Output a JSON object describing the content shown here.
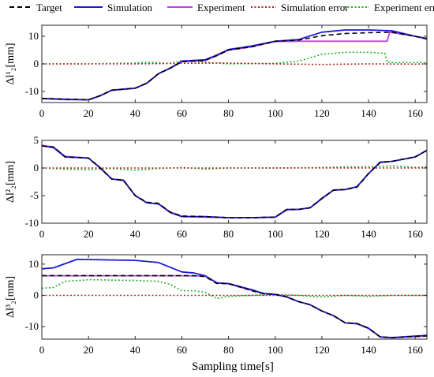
{
  "legend": [
    {
      "label": "Target",
      "color": "#000000",
      "dash": "dashed"
    },
    {
      "label": "Simulation",
      "color": "#1a1ad6",
      "dash": "solid"
    },
    {
      "label": "Experiment",
      "color": "#bf40e6",
      "dash": "solid"
    },
    {
      "label": "Simulation error",
      "color": "#b22222",
      "dash": "dotted"
    },
    {
      "label": "Experiment error",
      "color": "#22b022",
      "dash": "dotted"
    }
  ],
  "chart_data": [
    {
      "type": "line",
      "ylabel": "Δl¹₂[mm]",
      "xlim": [
        0,
        165
      ],
      "ylim": [
        -14,
        14
      ],
      "xticks": [
        0,
        20,
        40,
        60,
        80,
        100,
        120,
        140,
        160
      ],
      "yticks": [
        -10,
        0,
        10
      ],
      "series": [
        {
          "name": "Target",
          "color": "#000000",
          "style": "dashed",
          "x": [
            0,
            10,
            20,
            25,
            30,
            40,
            45,
            50,
            55,
            60,
            70,
            75,
            80,
            90,
            100,
            110,
            120,
            130,
            140,
            150,
            160,
            165
          ],
          "y": [
            -12.5,
            -12.8,
            -13,
            -11.5,
            -9.5,
            -8.8,
            -7,
            -3.5,
            -1.5,
            0.8,
            1.3,
            3,
            5,
            6.2,
            8.2,
            8.6,
            10.2,
            11,
            11.3,
            11.5,
            10,
            9
          ]
        },
        {
          "name": "Simulation",
          "color": "#1a1ad6",
          "style": "solid",
          "x": [
            0,
            10,
            20,
            25,
            30,
            40,
            45,
            50,
            55,
            60,
            70,
            75,
            80,
            90,
            100,
            110,
            120,
            130,
            140,
            150,
            160,
            165
          ],
          "y": [
            -12.5,
            -12.8,
            -13,
            -11.5,
            -9.5,
            -8.8,
            -7,
            -3.5,
            -1.5,
            1,
            1.5,
            3.2,
            5.2,
            6.5,
            8.2,
            8.8,
            11.5,
            12.3,
            12.3,
            12,
            10,
            9.2
          ]
        },
        {
          "name": "Experiment",
          "color": "#bf40e6",
          "style": "solid",
          "x": [
            0,
            10,
            20,
            25,
            30,
            40,
            45,
            50,
            55,
            60,
            70,
            75,
            80,
            90,
            100,
            110,
            120,
            130,
            140,
            148,
            149,
            160,
            165
          ],
          "y": [
            -12.6,
            -12.9,
            -13,
            -11.6,
            -9.6,
            -8.8,
            -7,
            -3.6,
            -1.6,
            0.8,
            1.2,
            3,
            5,
            6.2,
            8.1,
            8.2,
            8.2,
            8.2,
            8.2,
            8.2,
            11.5,
            10,
            9
          ]
        },
        {
          "name": "Simulation error",
          "color": "#b22222",
          "style": "dotted",
          "x": [
            0,
            20,
            40,
            60,
            80,
            100,
            120,
            140,
            160,
            165
          ],
          "y": [
            0,
            0,
            0,
            0.2,
            0.3,
            0,
            -0.2,
            0,
            -0.1,
            0
          ]
        },
        {
          "name": "Experiment error",
          "color": "#22b022",
          "style": "dotted",
          "x": [
            0,
            20,
            40,
            45,
            55,
            60,
            80,
            100,
            110,
            120,
            130,
            140,
            147,
            148,
            160,
            165
          ],
          "y": [
            0,
            0,
            0.3,
            0.6,
            0.2,
            1.2,
            0,
            0.2,
            1,
            3.5,
            4.2,
            4.2,
            3.8,
            0.5,
            0.5,
            0.5
          ]
        }
      ]
    },
    {
      "type": "line",
      "ylabel": "Δl²₂[mm]",
      "xlim": [
        0,
        165
      ],
      "ylim": [
        -10,
        5
      ],
      "xticks": [
        0,
        20,
        40,
        60,
        80,
        100,
        120,
        140,
        160
      ],
      "yticks": [
        -10,
        -5,
        0,
        5
      ],
      "series": [
        {
          "name": "Target",
          "color": "#000000",
          "style": "dashed",
          "x": [
            0,
            5,
            10,
            20,
            25,
            30,
            35,
            40,
            45,
            50,
            55,
            60,
            70,
            80,
            90,
            100,
            105,
            110,
            115,
            120,
            125,
            130,
            135,
            140,
            145,
            150,
            160,
            165
          ],
          "y": [
            4,
            3.8,
            2,
            1.8,
            0,
            -2,
            -2.2,
            -5,
            -6.2,
            -6.4,
            -8,
            -8.7,
            -8.8,
            -9,
            -9,
            -8.9,
            -7.5,
            -7.5,
            -7.2,
            -5.5,
            -4,
            -3.9,
            -3.5,
            -1,
            1,
            1.2,
            2,
            3.2
          ]
        },
        {
          "name": "Simulation",
          "color": "#1a1ad6",
          "style": "solid",
          "x": [
            0,
            5,
            10,
            20,
            25,
            30,
            35,
            40,
            45,
            50,
            55,
            60,
            70,
            80,
            90,
            100,
            105,
            110,
            115,
            120,
            125,
            130,
            135,
            140,
            145,
            150,
            160,
            165
          ],
          "y": [
            4,
            3.7,
            2,
            1.8,
            0,
            -2,
            -2.2,
            -5,
            -6.3,
            -6.5,
            -8,
            -8.8,
            -8.8,
            -9,
            -9,
            -8.9,
            -7.5,
            -7.5,
            -7.2,
            -5.5,
            -4,
            -3.9,
            -3.4,
            -1,
            1,
            1.2,
            2,
            3.2
          ]
        },
        {
          "name": "Experiment",
          "color": "#bf40e6",
          "style": "solid",
          "x": [
            0,
            5,
            10,
            20,
            25,
            30,
            35,
            40,
            45,
            50,
            55,
            60,
            70,
            80,
            90,
            100,
            105,
            110,
            115,
            120,
            125,
            130,
            135,
            140,
            145,
            150,
            160,
            165
          ],
          "y": [
            4.1,
            3.8,
            2.1,
            1.8,
            0.1,
            -2,
            -2.3,
            -5,
            -6.3,
            -6.5,
            -8.1,
            -8.8,
            -8.9,
            -9,
            -9,
            -8.9,
            -7.6,
            -7.5,
            -7.2,
            -5.6,
            -4,
            -3.9,
            -3.4,
            -1,
            1.1,
            1.2,
            2,
            3.2
          ]
        },
        {
          "name": "Simulation error",
          "color": "#b22222",
          "style": "dotted",
          "x": [
            0,
            20,
            40,
            60,
            80,
            100,
            120,
            140,
            160,
            165
          ],
          "y": [
            0,
            0,
            0,
            0,
            0,
            0,
            0,
            0,
            0,
            0
          ]
        },
        {
          "name": "Experiment error",
          "color": "#22b022",
          "style": "dotted",
          "x": [
            0,
            10,
            20,
            30,
            40,
            50,
            60,
            70,
            80,
            100,
            120,
            130,
            140,
            150,
            160,
            165
          ],
          "y": [
            0,
            -0.2,
            -0.3,
            -0.1,
            -0.4,
            -0.1,
            0.1,
            -0.2,
            0,
            0,
            0.1,
            0.2,
            0.2,
            0.4,
            0.1,
            0.2
          ]
        }
      ]
    },
    {
      "type": "line",
      "ylabel": "Δl³₂[mm]",
      "xlim": [
        0,
        165
      ],
      "ylim": [
        -14,
        13
      ],
      "xticks": [
        0,
        20,
        40,
        60,
        80,
        100,
        120,
        140,
        160
      ],
      "yticks": [
        -10,
        0,
        10
      ],
      "series": [
        {
          "name": "Target",
          "color": "#000000",
          "style": "dashed",
          "x": [
            0,
            20,
            40,
            55,
            60,
            65,
            70,
            75,
            80,
            90,
            95,
            100,
            105,
            110,
            115,
            120,
            125,
            130,
            135,
            140,
            145,
            150,
            165
          ],
          "y": [
            6.3,
            6.3,
            6.3,
            6.3,
            6.3,
            6.3,
            6,
            3.8,
            3.8,
            1.5,
            0.5,
            0.3,
            -0.5,
            -2,
            -3,
            -5,
            -6.5,
            -8.8,
            -9,
            -10.5,
            -13.3,
            -13.5,
            -13
          ]
        },
        {
          "name": "Simulation",
          "color": "#1a1ad6",
          "style": "solid",
          "x": [
            0,
            5,
            15,
            40,
            50,
            60,
            65,
            70,
            75,
            80,
            90,
            95,
            100,
            105,
            110,
            115,
            120,
            125,
            130,
            135,
            140,
            145,
            150,
            165
          ],
          "y": [
            8.5,
            8.8,
            11.5,
            11.2,
            10.5,
            7.5,
            7.2,
            6.3,
            4,
            3.8,
            1.8,
            0.6,
            0.3,
            -0.5,
            -2,
            -3,
            -5,
            -6.5,
            -8.8,
            -9,
            -10.5,
            -13.3,
            -13.5,
            -12.8
          ]
        },
        {
          "name": "Experiment",
          "color": "#bf40e6",
          "style": "solid",
          "x": [
            0,
            20,
            40,
            60,
            70,
            75,
            80,
            90,
            95,
            100,
            105,
            110,
            115,
            120,
            125,
            130,
            135,
            140,
            145,
            150,
            165
          ],
          "y": [
            6.3,
            6.3,
            6.3,
            6.3,
            6.2,
            4,
            3.7,
            1.6,
            0.6,
            0.3,
            -0.5,
            -2,
            -3,
            -5,
            -6.5,
            -8.8,
            -9.1,
            -10.6,
            -13.3,
            -13.6,
            -13
          ]
        },
        {
          "name": "Simulation error",
          "color": "#b22222",
          "style": "dotted",
          "x": [
            0,
            20,
            40,
            60,
            80,
            100,
            120,
            140,
            160,
            165
          ],
          "y": [
            0,
            0,
            0,
            0,
            0,
            0,
            0,
            0,
            0,
            0
          ]
        },
        {
          "name": "Experiment error",
          "color": "#22b022",
          "style": "dotted",
          "x": [
            0,
            5,
            10,
            20,
            40,
            50,
            55,
            60,
            65,
            70,
            75,
            80,
            90,
            100,
            110,
            120,
            130,
            140,
            150,
            165
          ],
          "y": [
            2.3,
            2.5,
            4.5,
            5,
            4.8,
            4.5,
            3.5,
            1.5,
            1.5,
            1,
            -1,
            -0.3,
            0,
            0.3,
            0,
            -0.5,
            0,
            -0.3,
            0,
            0
          ]
        }
      ]
    }
  ],
  "xlabel": "Sampling time[s]"
}
